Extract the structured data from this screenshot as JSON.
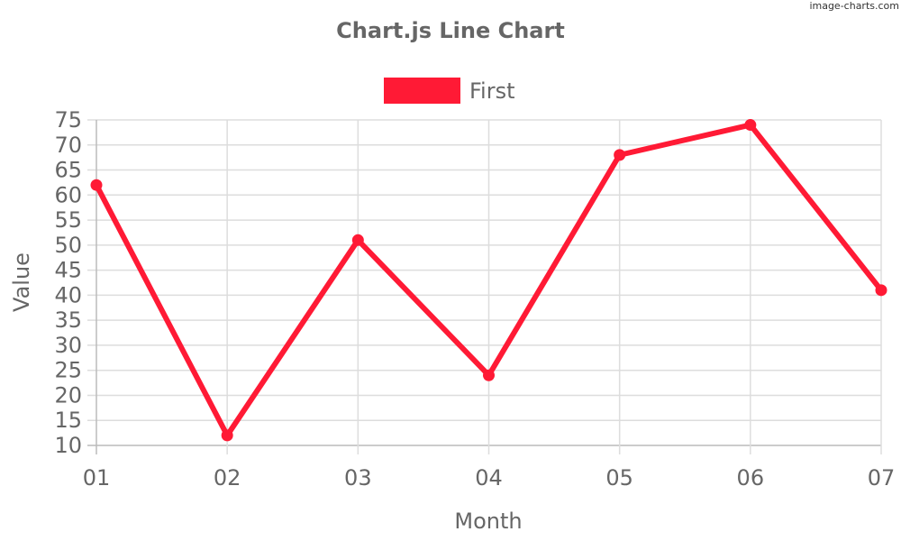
{
  "watermark": "image-charts.com",
  "colors": {
    "series": "#ff1a35",
    "text": "#666666",
    "grid": "#dddddd",
    "axis": "#bbbbbb"
  },
  "chart_data": {
    "type": "line",
    "title": "Chart.js Line Chart",
    "xlabel": "Month",
    "ylabel": "Value",
    "categories": [
      "01",
      "02",
      "03",
      "04",
      "05",
      "06",
      "07"
    ],
    "series": [
      {
        "name": "First",
        "values": [
          62,
          12,
          51,
          24,
          68,
          74,
          41
        ]
      }
    ],
    "ylim": [
      10,
      75
    ],
    "yticks": [
      75,
      70,
      65,
      60,
      55,
      50,
      45,
      40,
      35,
      30,
      25,
      20,
      15,
      10
    ],
    "grid": true,
    "legend": "top-center"
  }
}
